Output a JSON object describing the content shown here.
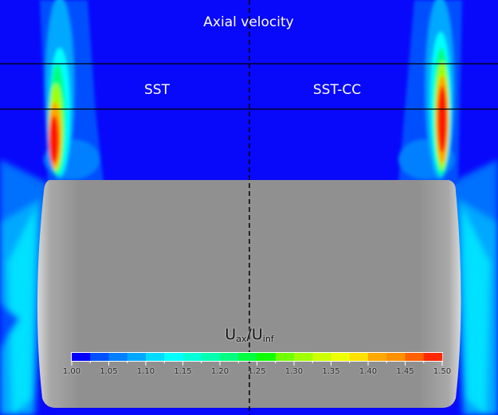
{
  "title": "Axial velocity",
  "panels": {
    "left": "SST",
    "right": "SST-CC"
  },
  "colorbar": {
    "title_main": "U",
    "title_sub1": "ax",
    "title_sep": "/U",
    "title_sub2": "inf",
    "min": 1.0,
    "max": 1.5,
    "ticks": [
      "1.00",
      "1.05",
      "1.10",
      "1.15",
      "1.20",
      "1.25",
      "1.30",
      "1.35",
      "1.40",
      "1.45",
      "1.50"
    ],
    "colors": [
      "#0000ff",
      "#0050ff",
      "#0080ff",
      "#00a8ff",
      "#00dcff",
      "#00ffff",
      "#00ffd8",
      "#00ffb0",
      "#00ff80",
      "#00ff40",
      "#10ff00",
      "#70ff00",
      "#a0ff00",
      "#ccff00",
      "#eeff00",
      "#ffe000",
      "#ffa800",
      "#ff9000",
      "#ff6000",
      "#ff2800"
    ]
  },
  "colors": {
    "background": "#0808fa",
    "body": "#8e8e8e"
  }
}
